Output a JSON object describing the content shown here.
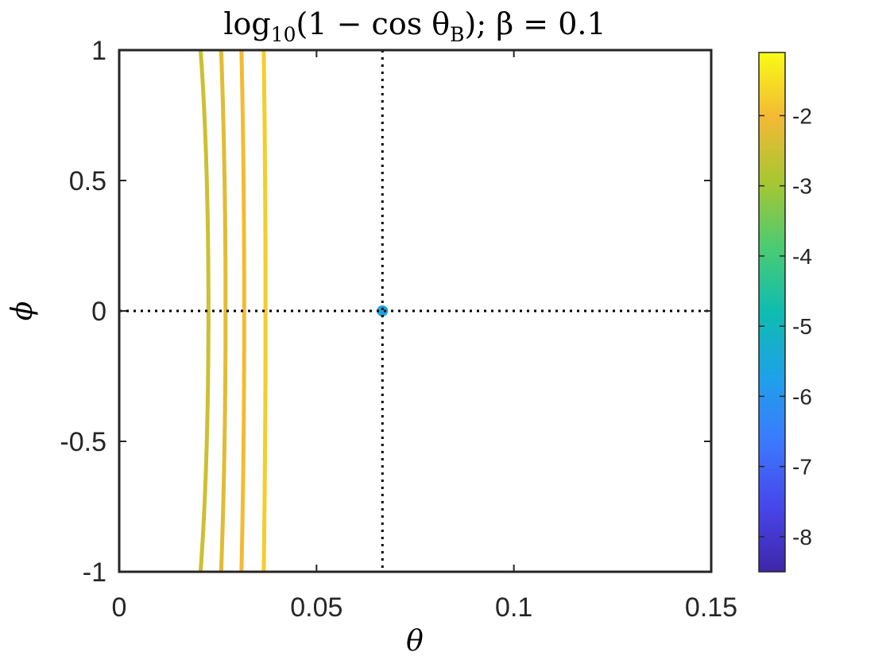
{
  "chart_data": {
    "type": "contour",
    "title_parts": {
      "log": "log",
      "log_sub": "10",
      "body": "(1 − cos θ",
      "body_sub": "B",
      "tail": "); β = 0.1"
    },
    "xlabel": "θ",
    "ylabel": "ϕ",
    "xlim": [
      0,
      0.15
    ],
    "ylim": [
      -1,
      1
    ],
    "xticks": [
      0,
      0.05,
      0.1,
      0.15
    ],
    "xtick_labels": [
      "0",
      "0.05",
      "0.1",
      "0.15"
    ],
    "yticks": [
      -1,
      -0.5,
      0,
      0.5,
      1
    ],
    "ytick_labels": [
      "-1",
      "-0.5",
      "0",
      "0.5",
      "1"
    ],
    "crosshair": {
      "theta": 0.0667,
      "phi": 0
    },
    "contour_levels": [
      -5,
      -4.75,
      -4.5,
      -4.25,
      -4,
      -3.75,
      -3.5,
      -3,
      -2.5,
      -2.25,
      -2,
      -1.75
    ],
    "colorbar": {
      "range": [
        -8.5,
        -1.1
      ],
      "ticks": [
        -8,
        -7,
        -6,
        -5,
        -4,
        -3,
        -2
      ],
      "tick_labels": [
        "-8",
        "-7",
        "-6",
        "-5",
        "-4",
        "-3",
        "-2"
      ],
      "colormap": "parula"
    },
    "grid": false,
    "legend": "none"
  }
}
